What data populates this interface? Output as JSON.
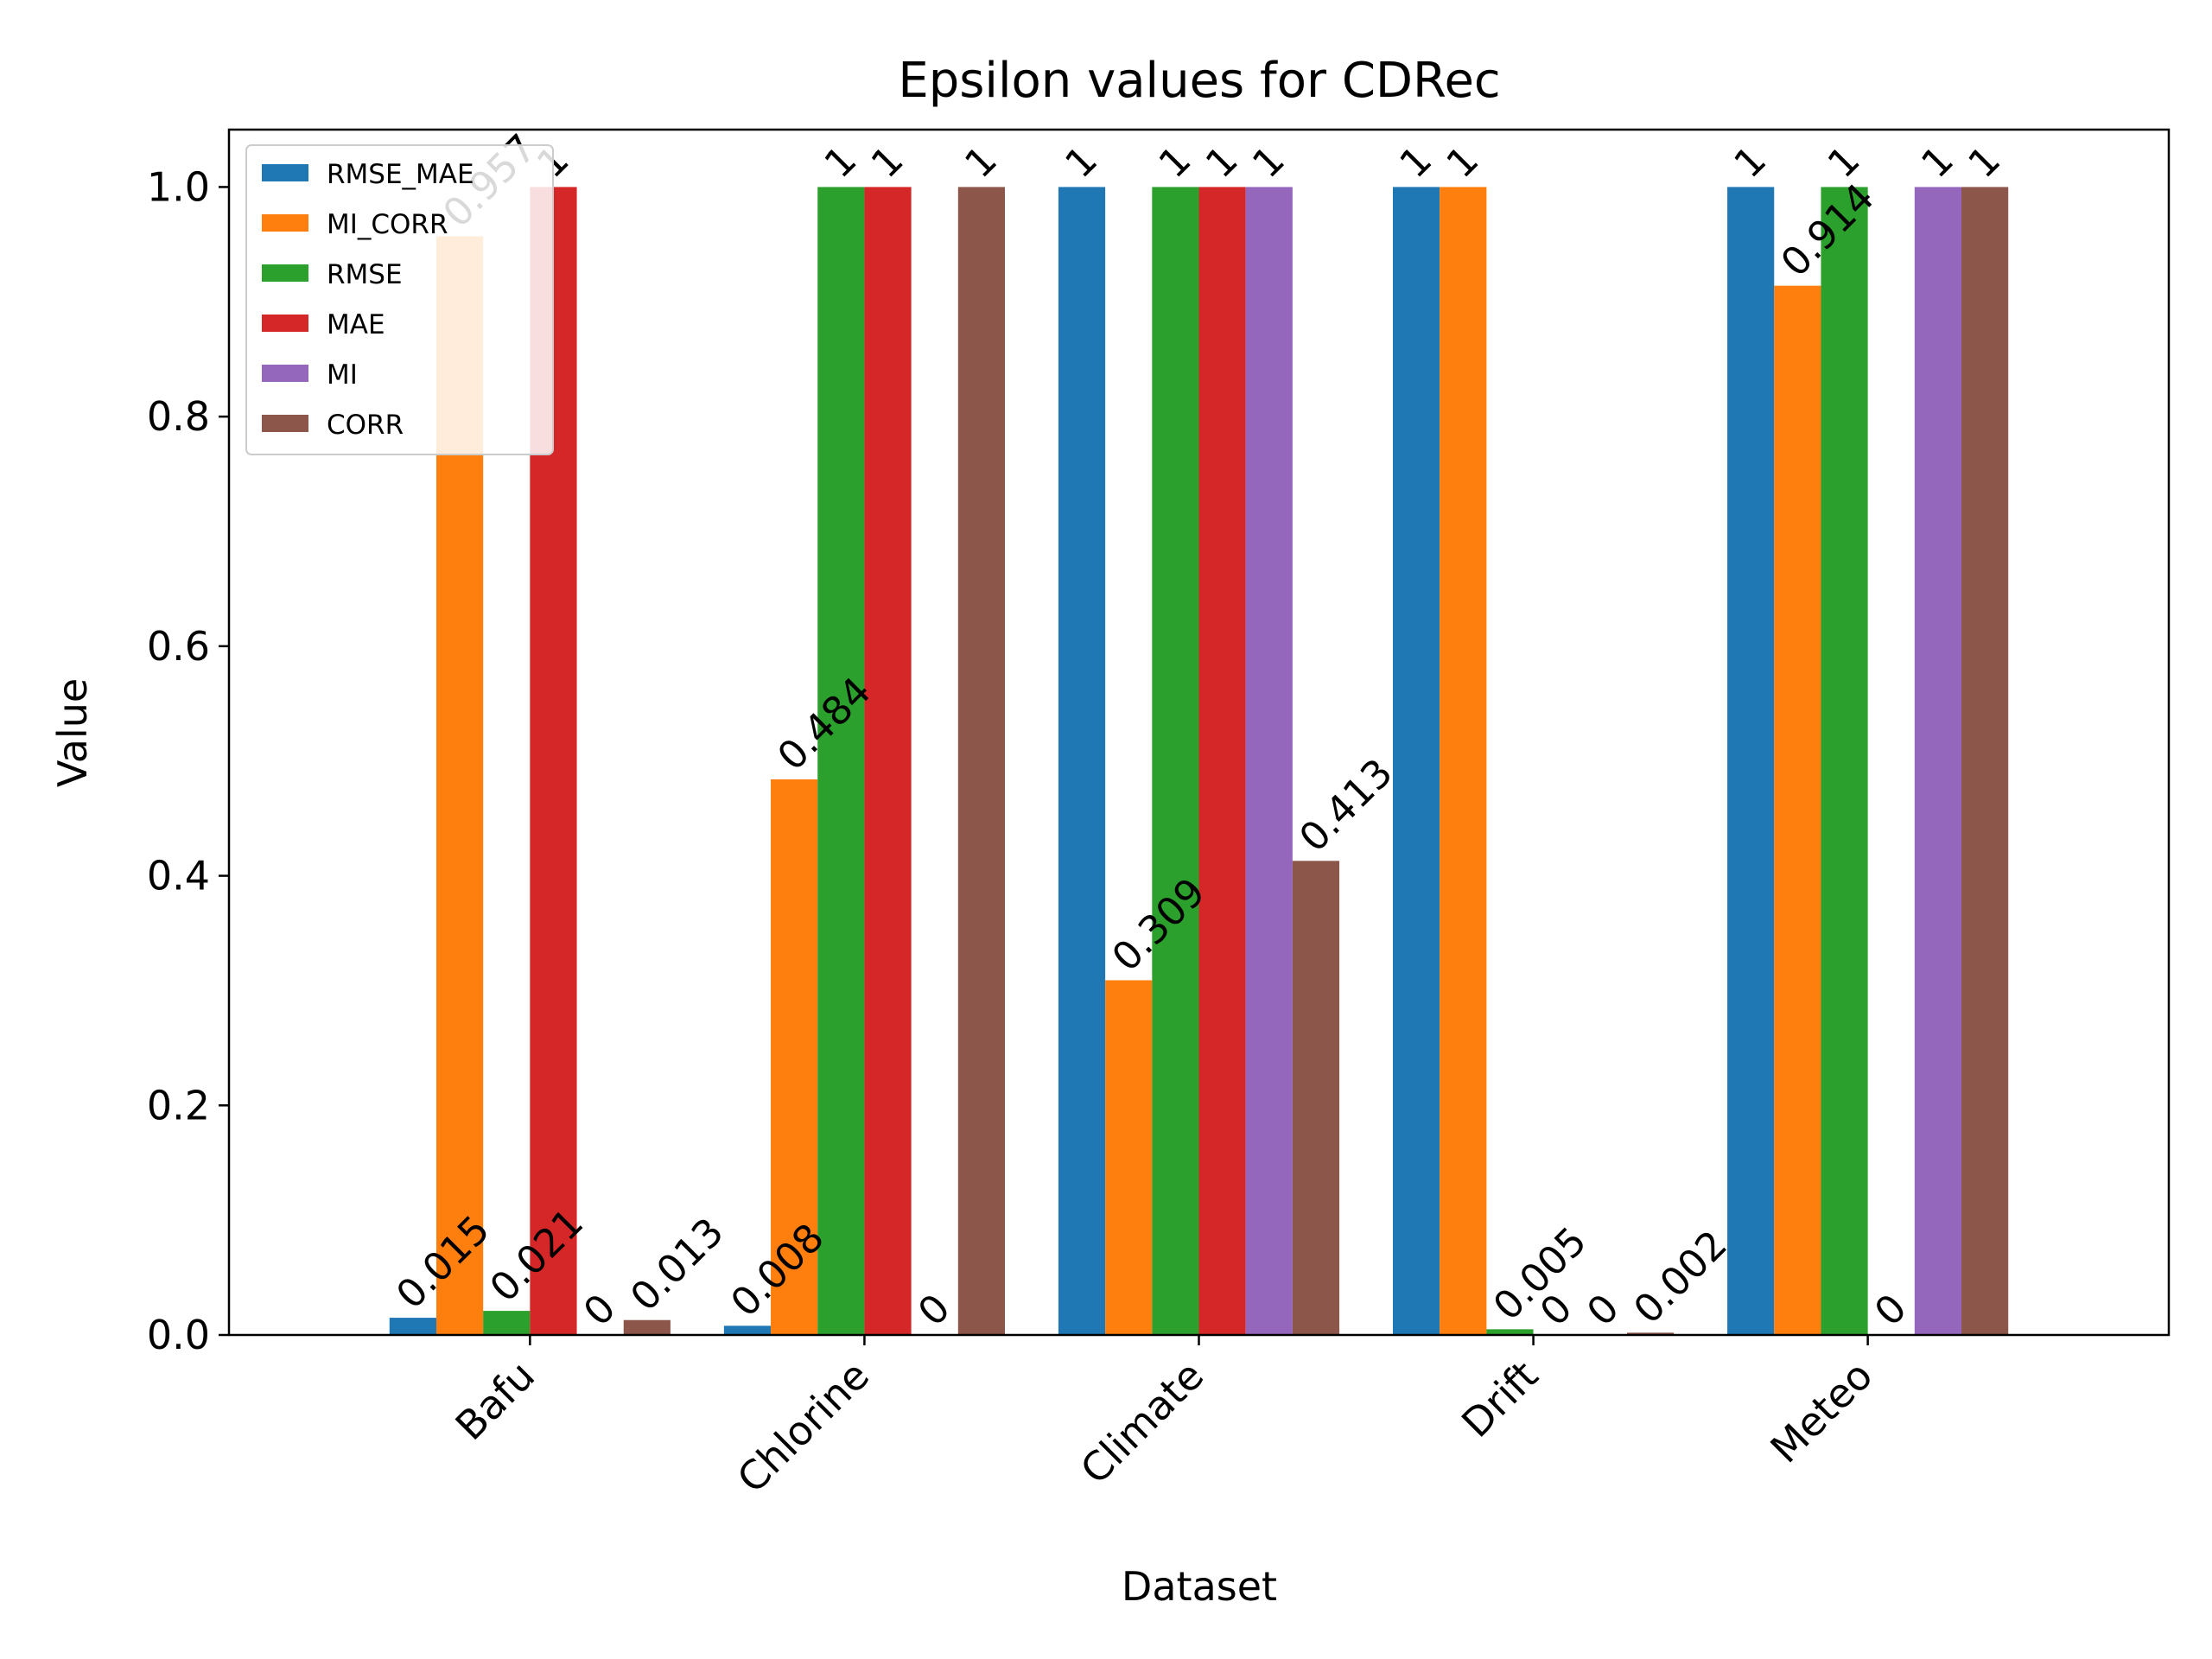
{
  "chart_data": {
    "type": "bar",
    "title": "Epsilon values for CDRec",
    "xlabel": "Dataset",
    "ylabel": "Value",
    "ylim": [
      0,
      1.05
    ],
    "yticks": [
      "0.0",
      "0.2",
      "0.4",
      "0.6",
      "0.8",
      "1.0"
    ],
    "categories": [
      "Bafu",
      "Chlorine",
      "Climate",
      "Drift",
      "Meteo"
    ],
    "series": [
      {
        "name": "RMSE_MAE",
        "color": "#1f77b4",
        "values": [
          0.015,
          0.008,
          1,
          1,
          1
        ],
        "labels": [
          "0.015",
          "0.008",
          "1",
          "1",
          "1"
        ]
      },
      {
        "name": "MI_CORR",
        "color": "#ff7f0e",
        "values": [
          0.957,
          0.484,
          0.309,
          1,
          0.914
        ],
        "labels": [
          "0.957",
          "0.484",
          "0.309",
          "1",
          "0.914"
        ]
      },
      {
        "name": "RMSE",
        "color": "#2ca02c",
        "values": [
          0.021,
          1,
          1,
          0.005,
          1
        ],
        "labels": [
          "0.021",
          "1",
          "1",
          "0.005",
          "1"
        ]
      },
      {
        "name": "MAE",
        "color": "#d62728",
        "values": [
          1,
          1,
          1,
          0,
          0
        ],
        "labels": [
          "1",
          "1",
          "1",
          "0",
          "0"
        ]
      },
      {
        "name": "MI",
        "color": "#9467bd",
        "values": [
          0,
          0,
          1,
          0,
          1
        ],
        "labels": [
          "0",
          "0",
          "1",
          "0",
          "1"
        ]
      },
      {
        "name": "CORR",
        "color": "#8c564b",
        "values": [
          0.013,
          1,
          0.413,
          0.002,
          1
        ],
        "labels": [
          "0.013",
          "1",
          "0.413",
          "0.002",
          "1"
        ]
      }
    ],
    "legend_position": "top-left",
    "grid": false
  }
}
